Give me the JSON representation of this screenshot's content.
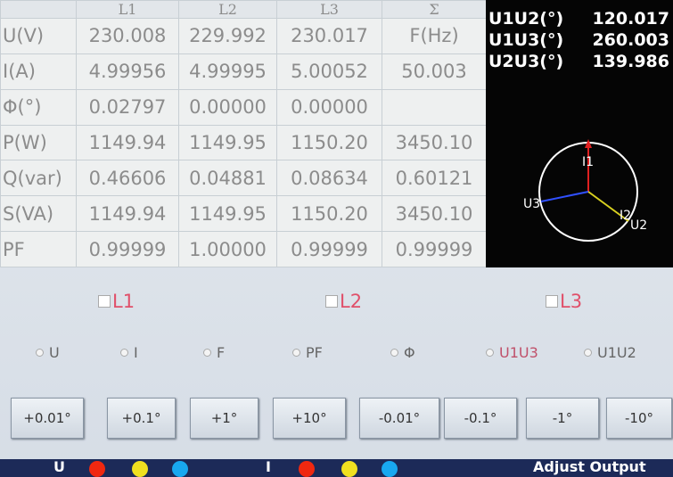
{
  "table": {
    "header": [
      "L1",
      "L2",
      "L3",
      "Σ"
    ],
    "rows": [
      [
        "U(V)",
        "230.008",
        "229.992",
        "230.017",
        "F(Hz)"
      ],
      [
        "I(A)",
        "4.99956",
        "4.99995",
        "5.00052",
        "50.003"
      ],
      [
        "Φ(°)",
        "0.02797",
        "0.00000",
        "0.00000"
      ],
      [
        "P(W)",
        "1149.94",
        "1149.95",
        "1150.20",
        "3450.10"
      ],
      [
        "Q(var)",
        "0.46606",
        "0.04881",
        "0.08634",
        "0.60121"
      ],
      [
        "S(VA)",
        "1149.94",
        "1149.95",
        "1150.20",
        "3450.10"
      ],
      [
        "PF",
        "0.99999",
        "1.00000",
        "0.99999",
        "0.99999"
      ]
    ]
  },
  "angles": [
    {
      "label": "U1U2(°)",
      "value": "120.017"
    },
    {
      "label": "U1U3(°)",
      "value": "260.003"
    },
    {
      "label": "U2U3(°)",
      "value": "139.986"
    }
  ],
  "phasor_labels": [
    "I1",
    "U3",
    "I2",
    "U2"
  ],
  "checkboxes": [
    "L1",
    "L2",
    "L3"
  ],
  "radios": [
    {
      "label": "U",
      "checked": false
    },
    {
      "label": "I",
      "checked": false
    },
    {
      "label": "F",
      "checked": false
    },
    {
      "label": "PF",
      "checked": false
    },
    {
      "label": "Φ",
      "checked": false
    },
    {
      "label": "U1U3",
      "checked": true
    },
    {
      "label": "U1U2",
      "checked": false
    }
  ],
  "buttons": [
    "+0.01°",
    "+0.1°",
    "+1°",
    "+10°",
    "-0.01°",
    "-0.1°",
    "-1°",
    "-10°"
  ],
  "footer": {
    "u": "U",
    "i": "I",
    "action": "Adjust Output"
  }
}
